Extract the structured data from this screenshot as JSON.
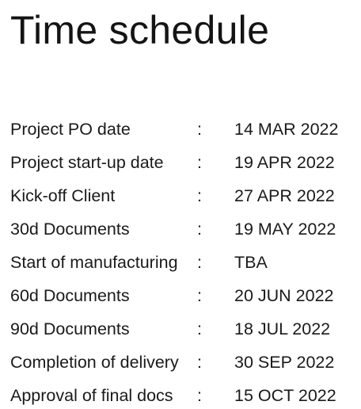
{
  "document": {
    "title": "Time schedule",
    "separator": ":",
    "schedule": [
      {
        "label": "Project PO date",
        "value": "14 MAR 2022"
      },
      {
        "label": "Project start-up date",
        "value": "19 APR 2022"
      },
      {
        "label": "Kick-off Client",
        "value": "27 APR 2022"
      },
      {
        "label": "30d Documents",
        "value": "19 MAY 2022"
      },
      {
        "label": "Start of manufacturing",
        "value": "TBA"
      },
      {
        "label": "60d Documents",
        "value": "20 JUN 2022"
      },
      {
        "label": "90d Documents",
        "value": "18 JUL 2022"
      },
      {
        "label": "Completion of delivery",
        "value": "30 SEP 2022"
      },
      {
        "label": "Approval of final docs",
        "value": "15 OCT 2022"
      }
    ]
  }
}
